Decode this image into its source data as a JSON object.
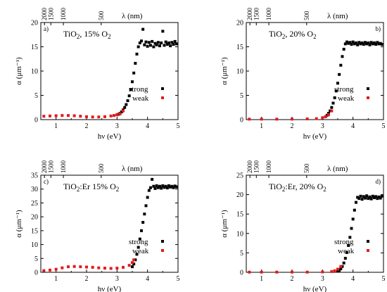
{
  "figure": {
    "top_axis_label": "λ (nm)",
    "bottom_axis_label": "hν (eV)",
    "y_axis_label": "α (μm⁻¹)",
    "legend_strong": "strong",
    "legend_weak": "weak"
  },
  "colors": {
    "strong": "#000000",
    "weak": "#e41a1c"
  },
  "chart_data": [
    {
      "type": "scatter",
      "panel_label": "a)",
      "sample_main": "TiO",
      "sample_sub": "2",
      "sample_mid": ", 15% O",
      "sample_sub2": "2",
      "xlim": [
        0.5,
        5
      ],
      "ylim": [
        0,
        20
      ],
      "x_ticks": [
        1,
        2,
        3,
        4,
        5
      ],
      "y_ticks": [
        0,
        5,
        10,
        15,
        20
      ],
      "top_ticks_nm": [
        "2000",
        "1500",
        "1000",
        "500"
      ],
      "series": [
        {
          "name": "strong",
          "points": [
            [
              3.0,
              1.0
            ],
            [
              3.05,
              1.1
            ],
            [
              3.1,
              1.3
            ],
            [
              3.15,
              1.6
            ],
            [
              3.2,
              2.0
            ],
            [
              3.25,
              2.5
            ],
            [
              3.3,
              3.1
            ],
            [
              3.35,
              3.9
            ],
            [
              3.4,
              4.9
            ],
            [
              3.45,
              6.2
            ],
            [
              3.5,
              7.8
            ],
            [
              3.55,
              9.6
            ],
            [
              3.6,
              11.6
            ],
            [
              3.65,
              13.5
            ],
            [
              3.7,
              15.0
            ],
            [
              3.75,
              15.8
            ],
            [
              3.8,
              16.2
            ],
            [
              3.85,
              18.6
            ],
            [
              3.9,
              15.4
            ],
            [
              3.95,
              16.0
            ],
            [
              4.0,
              15.1
            ],
            [
              4.05,
              15.9
            ],
            [
              4.1,
              15.3
            ],
            [
              4.15,
              16.1
            ],
            [
              4.2,
              15.0
            ],
            [
              4.25,
              15.7
            ],
            [
              4.3,
              15.4
            ],
            [
              4.35,
              15.9
            ],
            [
              4.4,
              15.2
            ],
            [
              4.45,
              15.8
            ],
            [
              4.5,
              18.2
            ],
            [
              4.55,
              15.3
            ],
            [
              4.6,
              16.0
            ],
            [
              4.65,
              15.5
            ],
            [
              4.7,
              15.8
            ],
            [
              4.75,
              15.2
            ],
            [
              4.8,
              15.9
            ],
            [
              4.85,
              15.5
            ],
            [
              4.9,
              16.1
            ],
            [
              4.95,
              15.6
            ]
          ]
        },
        {
          "name": "weak",
          "points": [
            [
              0.6,
              0.7
            ],
            [
              0.8,
              0.75
            ],
            [
              1.0,
              0.8
            ],
            [
              1.2,
              0.85
            ],
            [
              1.4,
              0.85
            ],
            [
              1.6,
              0.8
            ],
            [
              1.8,
              0.7
            ],
            [
              2.0,
              0.6
            ],
            [
              2.2,
              0.55
            ],
            [
              2.4,
              0.55
            ],
            [
              2.6,
              0.6
            ],
            [
              2.8,
              0.75
            ],
            [
              2.9,
              0.85
            ],
            [
              3.0,
              1.0
            ],
            [
              3.1,
              1.2
            ],
            [
              3.2,
              1.8
            ]
          ]
        }
      ]
    },
    {
      "type": "scatter",
      "panel_label": "b)",
      "sample_main": "TiO",
      "sample_sub": "2",
      "sample_mid": ", 20% O",
      "sample_sub2": "2",
      "xlim": [
        0.5,
        5
      ],
      "ylim": [
        0,
        20
      ],
      "x_ticks": [
        1,
        2,
        3,
        4,
        5
      ],
      "y_ticks": [
        0,
        5,
        10,
        15,
        20
      ],
      "top_ticks_nm": [
        "2000",
        "1500",
        "1000",
        "500"
      ],
      "series": [
        {
          "name": "strong",
          "points": [
            [
              3.1,
              0.6
            ],
            [
              3.15,
              0.9
            ],
            [
              3.2,
              1.3
            ],
            [
              3.25,
              1.8
            ],
            [
              3.3,
              2.5
            ],
            [
              3.35,
              3.4
            ],
            [
              3.4,
              4.5
            ],
            [
              3.45,
              5.9
            ],
            [
              3.5,
              7.5
            ],
            [
              3.55,
              9.3
            ],
            [
              3.6,
              11.2
            ],
            [
              3.65,
              13.0
            ],
            [
              3.7,
              14.5
            ],
            [
              3.75,
              15.6
            ],
            [
              3.8,
              16.0
            ],
            [
              3.85,
              15.7
            ],
            [
              3.9,
              15.9
            ],
            [
              3.95,
              15.5
            ],
            [
              4.0,
              16.0
            ],
            [
              4.05,
              15.6
            ],
            [
              4.1,
              15.8
            ],
            [
              4.15,
              15.4
            ],
            [
              4.2,
              15.9
            ],
            [
              4.25,
              15.6
            ],
            [
              4.3,
              15.8
            ],
            [
              4.35,
              15.5
            ],
            [
              4.4,
              15.9
            ],
            [
              4.45,
              15.6
            ],
            [
              4.5,
              15.8
            ],
            [
              4.55,
              15.4
            ],
            [
              4.6,
              15.9
            ],
            [
              4.65,
              15.6
            ],
            [
              4.7,
              15.8
            ],
            [
              4.75,
              15.5
            ],
            [
              4.8,
              15.9
            ],
            [
              4.85,
              15.6
            ],
            [
              4.9,
              15.7
            ],
            [
              4.95,
              15.5
            ]
          ]
        },
        {
          "name": "weak",
          "points": [
            [
              0.6,
              0.1
            ],
            [
              1.0,
              0.1
            ],
            [
              1.5,
              0.1
            ],
            [
              2.0,
              0.1
            ],
            [
              2.5,
              0.15
            ],
            [
              2.8,
              0.2
            ],
            [
              3.0,
              0.4
            ],
            [
              3.1,
              0.6
            ],
            [
              3.2,
              1.0
            ],
            [
              3.3,
              1.8
            ]
          ]
        }
      ]
    },
    {
      "type": "scatter",
      "panel_label": "c)",
      "sample_main": "TiO",
      "sample_sub": "2",
      "sample_mid": ":Er 15% O",
      "sample_sub2": "2",
      "xlim": [
        0.5,
        5
      ],
      "ylim": [
        0,
        35
      ],
      "x_ticks": [
        1,
        2,
        3,
        4,
        5
      ],
      "y_ticks": [
        0,
        5,
        10,
        15,
        20,
        25,
        30,
        35
      ],
      "top_ticks_nm": [
        "2000",
        "1500",
        "1000",
        "500"
      ],
      "series": [
        {
          "name": "strong",
          "points": [
            [
              3.5,
              2.0
            ],
            [
              3.55,
              3.0
            ],
            [
              3.6,
              4.5
            ],
            [
              3.65,
              6.5
            ],
            [
              3.7,
              9.0
            ],
            [
              3.75,
              12.0
            ],
            [
              3.8,
              15.0
            ],
            [
              3.85,
              18.0
            ],
            [
              3.9,
              21.0
            ],
            [
              3.95,
              24.0
            ],
            [
              4.0,
              27.0
            ],
            [
              4.05,
              29.5
            ],
            [
              4.1,
              30.5
            ],
            [
              4.15,
              33.5
            ],
            [
              4.2,
              31.0
            ],
            [
              4.25,
              30.2
            ],
            [
              4.3,
              31.2
            ],
            [
              4.35,
              30.5
            ],
            [
              4.4,
              31.0
            ],
            [
              4.45,
              30.3
            ],
            [
              4.5,
              31.2
            ],
            [
              4.55,
              30.6
            ],
            [
              4.6,
              31.0
            ],
            [
              4.65,
              30.4
            ],
            [
              4.7,
              31.2
            ],
            [
              4.75,
              30.7
            ],
            [
              4.8,
              31.0
            ],
            [
              4.85,
              30.5
            ],
            [
              4.9,
              31.1
            ],
            [
              4.95,
              30.8
            ]
          ]
        },
        {
          "name": "weak",
          "points": [
            [
              0.6,
              0.6
            ],
            [
              0.8,
              0.8
            ],
            [
              1.0,
              1.1
            ],
            [
              1.2,
              1.6
            ],
            [
              1.4,
              2.0
            ],
            [
              1.6,
              2.1
            ],
            [
              1.8,
              2.0
            ],
            [
              2.0,
              1.9
            ],
            [
              2.2,
              1.8
            ],
            [
              2.4,
              1.6
            ],
            [
              2.6,
              1.5
            ],
            [
              2.8,
              1.4
            ],
            [
              3.0,
              1.5
            ],
            [
              3.2,
              1.8
            ],
            [
              3.4,
              2.5
            ],
            [
              3.5,
              3.5
            ],
            [
              3.55,
              4.5
            ]
          ]
        }
      ]
    },
    {
      "type": "scatter",
      "panel_label": "d)",
      "sample_main": "TiO",
      "sample_sub": "2",
      "sample_mid": ":Er, 20% O",
      "sample_sub2": "2",
      "xlim": [
        0.5,
        5
      ],
      "ylim": [
        0,
        25
      ],
      "x_ticks": [
        1,
        2,
        3,
        4,
        5
      ],
      "y_ticks": [
        0,
        5,
        10,
        15,
        20,
        25
      ],
      "top_ticks_nm": [
        "2000",
        "1500",
        "1000",
        "500"
      ],
      "series": [
        {
          "name": "strong",
          "points": [
            [
              3.5,
              0.3
            ],
            [
              3.55,
              0.5
            ],
            [
              3.6,
              0.9
            ],
            [
              3.65,
              1.5
            ],
            [
              3.7,
              2.4
            ],
            [
              3.75,
              3.6
            ],
            [
              3.8,
              5.1
            ],
            [
              3.85,
              6.9
            ],
            [
              3.9,
              9.0
            ],
            [
              3.95,
              11.3
            ],
            [
              4.0,
              13.7
            ],
            [
              4.05,
              16.0
            ],
            [
              4.1,
              18.0
            ],
            [
              4.15,
              19.3
            ],
            [
              4.2,
              19.0
            ],
            [
              4.25,
              19.6
            ],
            [
              4.3,
              18.8
            ],
            [
              4.35,
              19.5
            ],
            [
              4.4,
              19.1
            ],
            [
              4.45,
              19.7
            ],
            [
              4.5,
              19.0
            ],
            [
              4.55,
              19.4
            ],
            [
              4.6,
              18.9
            ],
            [
              4.65,
              19.6
            ],
            [
              4.7,
              19.2
            ],
            [
              4.75,
              19.5
            ],
            [
              4.8,
              19.0
            ],
            [
              4.85,
              19.4
            ],
            [
              4.9,
              19.1
            ],
            [
              4.95,
              19.6
            ]
          ]
        },
        {
          "name": "weak",
          "points": [
            [
              0.6,
              0.05
            ],
            [
              1.0,
              0.05
            ],
            [
              1.5,
              0.05
            ],
            [
              2.0,
              0.05
            ],
            [
              2.5,
              0.05
            ],
            [
              3.0,
              0.1
            ],
            [
              3.3,
              0.2
            ],
            [
              3.4,
              0.4
            ],
            [
              3.5,
              0.8
            ],
            [
              3.6,
              1.5
            ]
          ]
        }
      ]
    }
  ]
}
